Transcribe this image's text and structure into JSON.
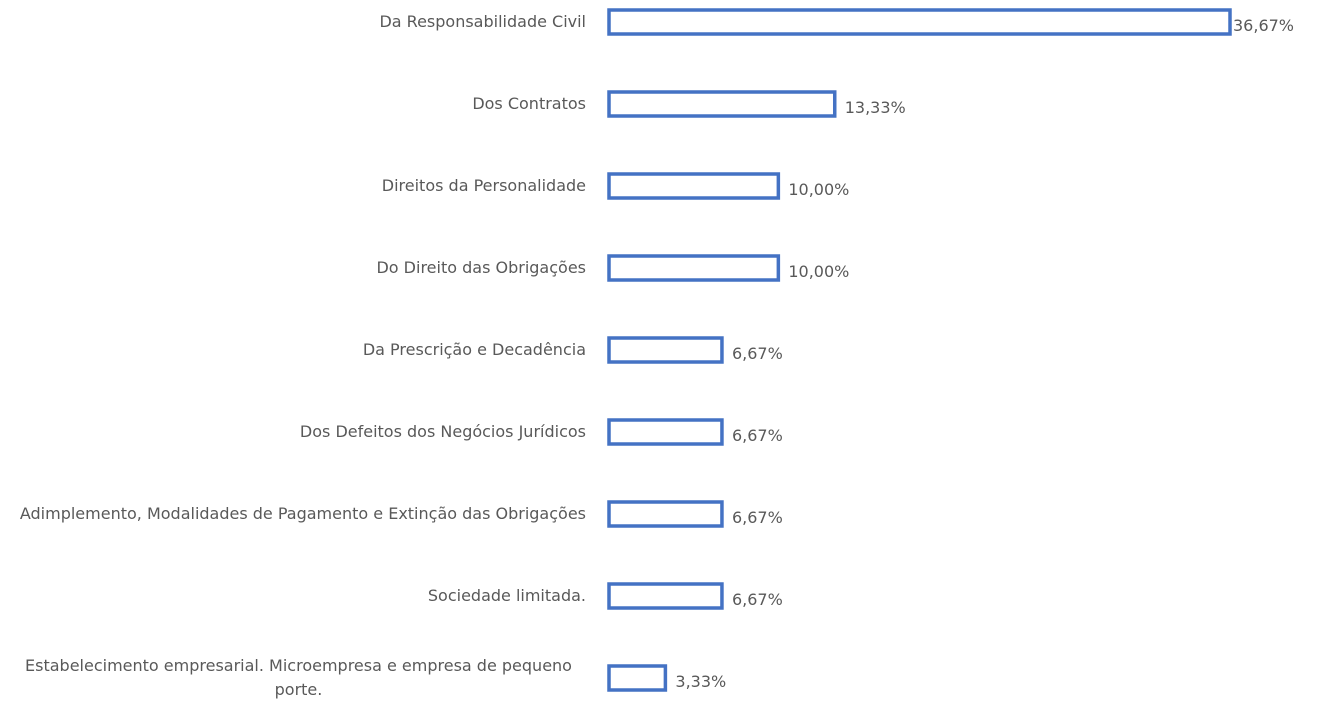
{
  "chart_data": {
    "type": "bar",
    "orientation": "horizontal",
    "categories": [
      "Da Responsabilidade Civil",
      "Dos Contratos",
      "Direitos da Personalidade",
      "Do Direito das Obrigações",
      "Da Prescrição e Decadência",
      "Dos Defeitos dos Negócios Jurídicos",
      "Adimplemento, Modalidades de Pagamento e Extinção das Obrigações",
      "Sociedade limitada.",
      "Estabelecimento empresarial. Microempresa e empresa de pequeno porte."
    ],
    "values": [
      36.67,
      13.33,
      10.0,
      10.0,
      6.67,
      6.67,
      6.67,
      6.67,
      3.33
    ],
    "value_labels": [
      "36,67%",
      "13,33%",
      "10,00%",
      "10,00%",
      "6,67%",
      "6,67%",
      "6,67%",
      "6,67%",
      "3,33%"
    ],
    "color": "#4472c4"
  }
}
